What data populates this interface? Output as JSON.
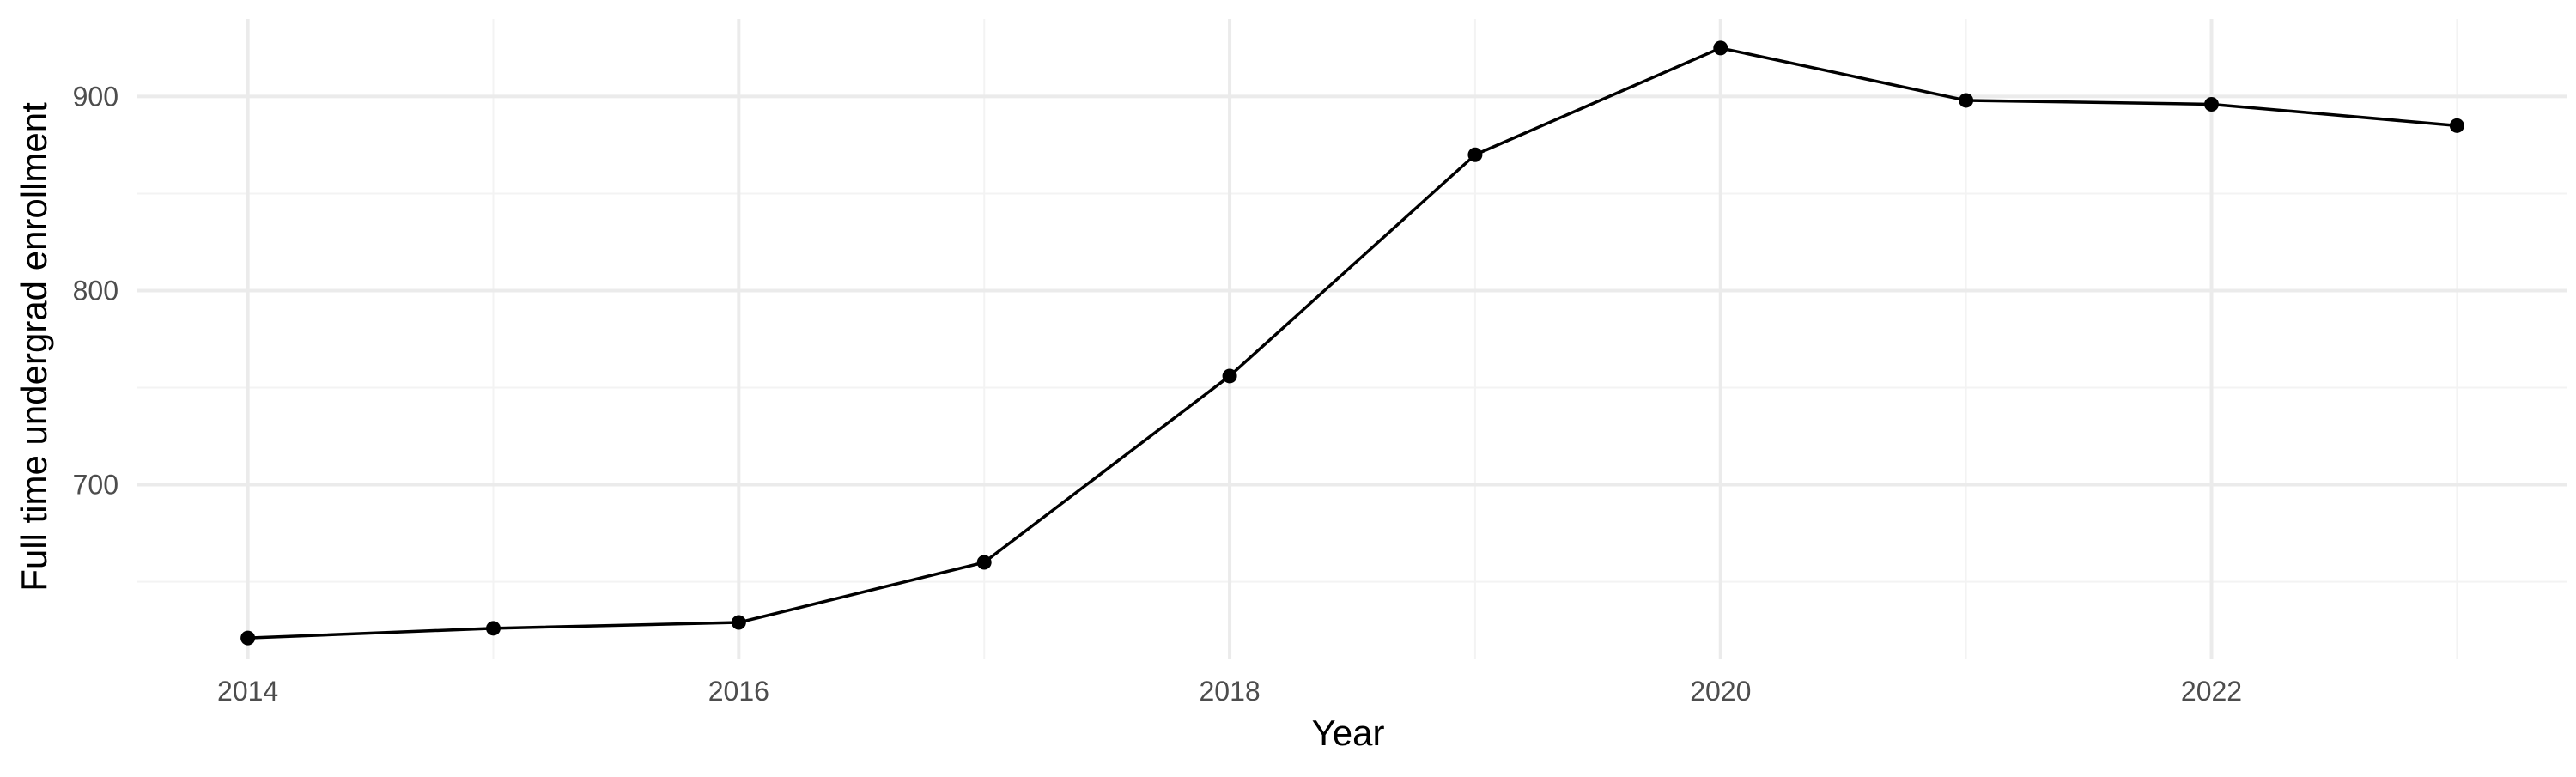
{
  "chart_data": {
    "type": "line",
    "title": "",
    "xlabel": "Year",
    "ylabel": "Full time undergrad enrollment",
    "x": [
      2014,
      2015,
      2016,
      2017,
      2018,
      2019,
      2020,
      2021,
      2022,
      2023
    ],
    "series": [
      {
        "values": [
          621,
          626,
          629,
          660,
          756,
          870,
          925,
          898,
          896,
          885
        ]
      }
    ],
    "xlim": [
      2013.55,
      2023.45
    ],
    "ylim": [
      610,
      940
    ],
    "x_ticks": [
      2014,
      2016,
      2018,
      2020,
      2022
    ],
    "x_tick_labels": [
      "2014",
      "2016",
      "2018",
      "2020",
      "2022"
    ],
    "y_ticks": [
      700,
      800,
      900
    ],
    "y_tick_labels": [
      "700",
      "800",
      "900"
    ],
    "grid": true,
    "legend": "none",
    "colors": {
      "line": "#000000",
      "point": "#000000",
      "grid_major": "#ebebeb",
      "grid_minor": "#f3f3f3",
      "tick_label": "#4d4d4d",
      "background": "#ffffff"
    }
  }
}
